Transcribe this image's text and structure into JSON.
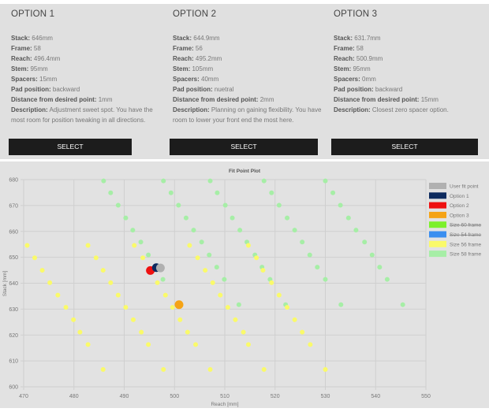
{
  "options": [
    {
      "title": "OPTION 1",
      "fields": [
        {
          "label": "Stack:",
          "value": "646mm"
        },
        {
          "label": "Frame:",
          "value": "58"
        },
        {
          "label": "Reach:",
          "value": "496.4mm"
        },
        {
          "label": "Stem:",
          "value": "95mm"
        },
        {
          "label": "Spacers:",
          "value": "15mm"
        },
        {
          "label": "Pad position:",
          "value": "backward"
        },
        {
          "label": "Distance from desired point:",
          "value": "1mm"
        },
        {
          "label": "Description:",
          "value": "Adjustment sweet spot. You have the most room for position tweaking in all directions."
        }
      ],
      "button": "SELECT"
    },
    {
      "title": "OPTION 2",
      "fields": [
        {
          "label": "Stack:",
          "value": "644.9mm"
        },
        {
          "label": "Frame:",
          "value": "56"
        },
        {
          "label": "Reach:",
          "value": "495.2mm"
        },
        {
          "label": "Stem:",
          "value": "105mm"
        },
        {
          "label": "Spacers:",
          "value": "40mm"
        },
        {
          "label": "Pad position:",
          "value": "nuetral"
        },
        {
          "label": "Distance from desired point:",
          "value": "2mm"
        },
        {
          "label": "Description:",
          "value": "Planning on gaining flexibility. You have room to lower your front end the most here."
        }
      ],
      "button": "SELECT"
    },
    {
      "title": "OPTION 3",
      "fields": [
        {
          "label": "Stack:",
          "value": "631.7mm"
        },
        {
          "label": "Frame:",
          "value": "58"
        },
        {
          "label": "Reach:",
          "value": "500.9mm"
        },
        {
          "label": "Stem:",
          "value": "95mm"
        },
        {
          "label": "Spacers:",
          "value": "0mm"
        },
        {
          "label": "Pad position:",
          "value": "backward"
        },
        {
          "label": "Distance from desired point:",
          "value": "15mm"
        },
        {
          "label": "Description:",
          "value": "Closest zero spacer option."
        }
      ],
      "button": "SELECT"
    }
  ],
  "chart_data": {
    "type": "scatter",
    "title": "Fit Point Plot",
    "xlabel": "Reach [mm]",
    "ylabel": "Stack [mm]",
    "xlim": [
      470,
      550
    ],
    "ylim": [
      600,
      680
    ],
    "xticks": [
      470,
      480,
      490,
      500,
      510,
      520,
      530,
      540,
      550
    ],
    "yticks": [
      600,
      610,
      620,
      630,
      640,
      650,
      660,
      670,
      680
    ],
    "grid": true,
    "legend_position": "right",
    "legend": [
      {
        "name": "User fit point",
        "color": "#b0b0b0",
        "hidden": false
      },
      {
        "name": "Option 1",
        "color": "#0d2a5e",
        "hidden": false
      },
      {
        "name": "Option 2",
        "color": "#ee1111",
        "hidden": false
      },
      {
        "name": "Option 3",
        "color": "#f5a315",
        "hidden": false
      },
      {
        "name": "Size 60 frame",
        "color": "#7cf02a",
        "hidden": true
      },
      {
        "name": "Size 54 frame",
        "color": "#3a8ef0",
        "hidden": true
      },
      {
        "name": "Size 56 frame",
        "color": "#fafa6a",
        "hidden": false
      },
      {
        "name": "Size 58 frame",
        "color": "#a6eea6",
        "hidden": false
      }
    ],
    "series": [
      {
        "name": "Size 58 frame",
        "color": "#a6eea6",
        "points": [
          [
            485.9,
            679.5
          ],
          [
            487.3,
            674.9
          ],
          [
            488.8,
            670.1
          ],
          [
            490.3,
            665.2
          ],
          [
            491.7,
            660.5
          ],
          [
            493.3,
            655.9
          ],
          [
            494.8,
            650.9
          ],
          [
            497.7,
            641.5
          ],
          [
            497.8,
            679.5
          ],
          [
            499.3,
            674.9
          ],
          [
            500.8,
            670.1
          ],
          [
            502.3,
            665.2
          ],
          [
            503.8,
            660.5
          ],
          [
            505.4,
            655.9
          ],
          [
            506.9,
            650.9
          ],
          [
            508.4,
            646.2
          ],
          [
            509.9,
            641.5
          ],
          [
            512.8,
            631.7
          ],
          [
            507.1,
            679.5
          ],
          [
            508.5,
            674.9
          ],
          [
            510.1,
            670.1
          ],
          [
            511.5,
            665.2
          ],
          [
            513.0,
            660.5
          ],
          [
            514.4,
            655.9
          ],
          [
            516.0,
            650.9
          ],
          [
            517.4,
            646.2
          ],
          [
            519.0,
            641.5
          ],
          [
            522.1,
            631.7
          ],
          [
            517.8,
            679.5
          ],
          [
            519.3,
            674.9
          ],
          [
            520.8,
            670.1
          ],
          [
            522.4,
            665.2
          ],
          [
            523.9,
            660.5
          ],
          [
            525.4,
            655.9
          ],
          [
            526.9,
            650.9
          ],
          [
            528.4,
            646.2
          ],
          [
            530.0,
            641.5
          ],
          [
            533.1,
            631.7
          ],
          [
            530.0,
            679.5
          ],
          [
            531.5,
            674.9
          ],
          [
            533.0,
            670.1
          ],
          [
            534.6,
            665.2
          ],
          [
            536.1,
            660.5
          ],
          [
            537.8,
            655.9
          ],
          [
            539.3,
            650.9
          ],
          [
            540.8,
            646.2
          ],
          [
            542.3,
            641.5
          ],
          [
            545.4,
            631.7
          ]
        ]
      },
      {
        "name": "Size 56 frame",
        "color": "#fafa6a",
        "points": [
          [
            470.7,
            654.6
          ],
          [
            472.2,
            649.8
          ],
          [
            473.7,
            645.0
          ],
          [
            475.2,
            640.2
          ],
          [
            476.8,
            635.4
          ],
          [
            478.4,
            630.7
          ],
          [
            479.9,
            625.9
          ],
          [
            481.2,
            621.1
          ],
          [
            482.8,
            616.3
          ],
          [
            485.8,
            606.7
          ],
          [
            482.8,
            654.6
          ],
          [
            484.4,
            649.8
          ],
          [
            485.8,
            645.0
          ],
          [
            487.3,
            640.2
          ],
          [
            488.8,
            635.4
          ],
          [
            490.3,
            630.7
          ],
          [
            491.8,
            625.9
          ],
          [
            493.4,
            621.1
          ],
          [
            494.8,
            616.3
          ],
          [
            497.8,
            606.7
          ],
          [
            492.0,
            654.6
          ],
          [
            493.7,
            649.8
          ],
          [
            496.6,
            640.2
          ],
          [
            498.2,
            635.4
          ],
          [
            499.6,
            630.7
          ],
          [
            501.1,
            625.9
          ],
          [
            502.6,
            621.1
          ],
          [
            504.2,
            616.3
          ],
          [
            507.1,
            606.7
          ],
          [
            503.0,
            654.6
          ],
          [
            504.6,
            649.8
          ],
          [
            506.1,
            645.0
          ],
          [
            507.6,
            640.2
          ],
          [
            509.1,
            635.4
          ],
          [
            510.6,
            630.7
          ],
          [
            512.1,
            625.9
          ],
          [
            513.7,
            621.1
          ],
          [
            514.7,
            616.3
          ],
          [
            517.8,
            606.7
          ],
          [
            514.7,
            654.6
          ],
          [
            516.3,
            649.8
          ],
          [
            517.6,
            645.0
          ],
          [
            519.3,
            640.2
          ],
          [
            520.8,
            635.4
          ],
          [
            522.4,
            630.7
          ],
          [
            523.9,
            625.9
          ],
          [
            525.4,
            621.1
          ],
          [
            527.0,
            616.3
          ],
          [
            530.0,
            606.7
          ]
        ]
      },
      {
        "name": "Option 2",
        "color": "#ee1111",
        "points": [
          [
            495.2,
            644.9
          ]
        ],
        "big": true
      },
      {
        "name": "Option 1",
        "color": "#0d2a5e",
        "points": [
          [
            496.4,
            646
          ]
        ],
        "big": true
      },
      {
        "name": "User fit point",
        "color": "#b0b0b0",
        "points": [
          [
            497.2,
            645.9
          ]
        ],
        "big": true
      },
      {
        "name": "Option 3",
        "color": "#f5a315",
        "points": [
          [
            500.9,
            631.7
          ]
        ],
        "big": true
      }
    ]
  }
}
